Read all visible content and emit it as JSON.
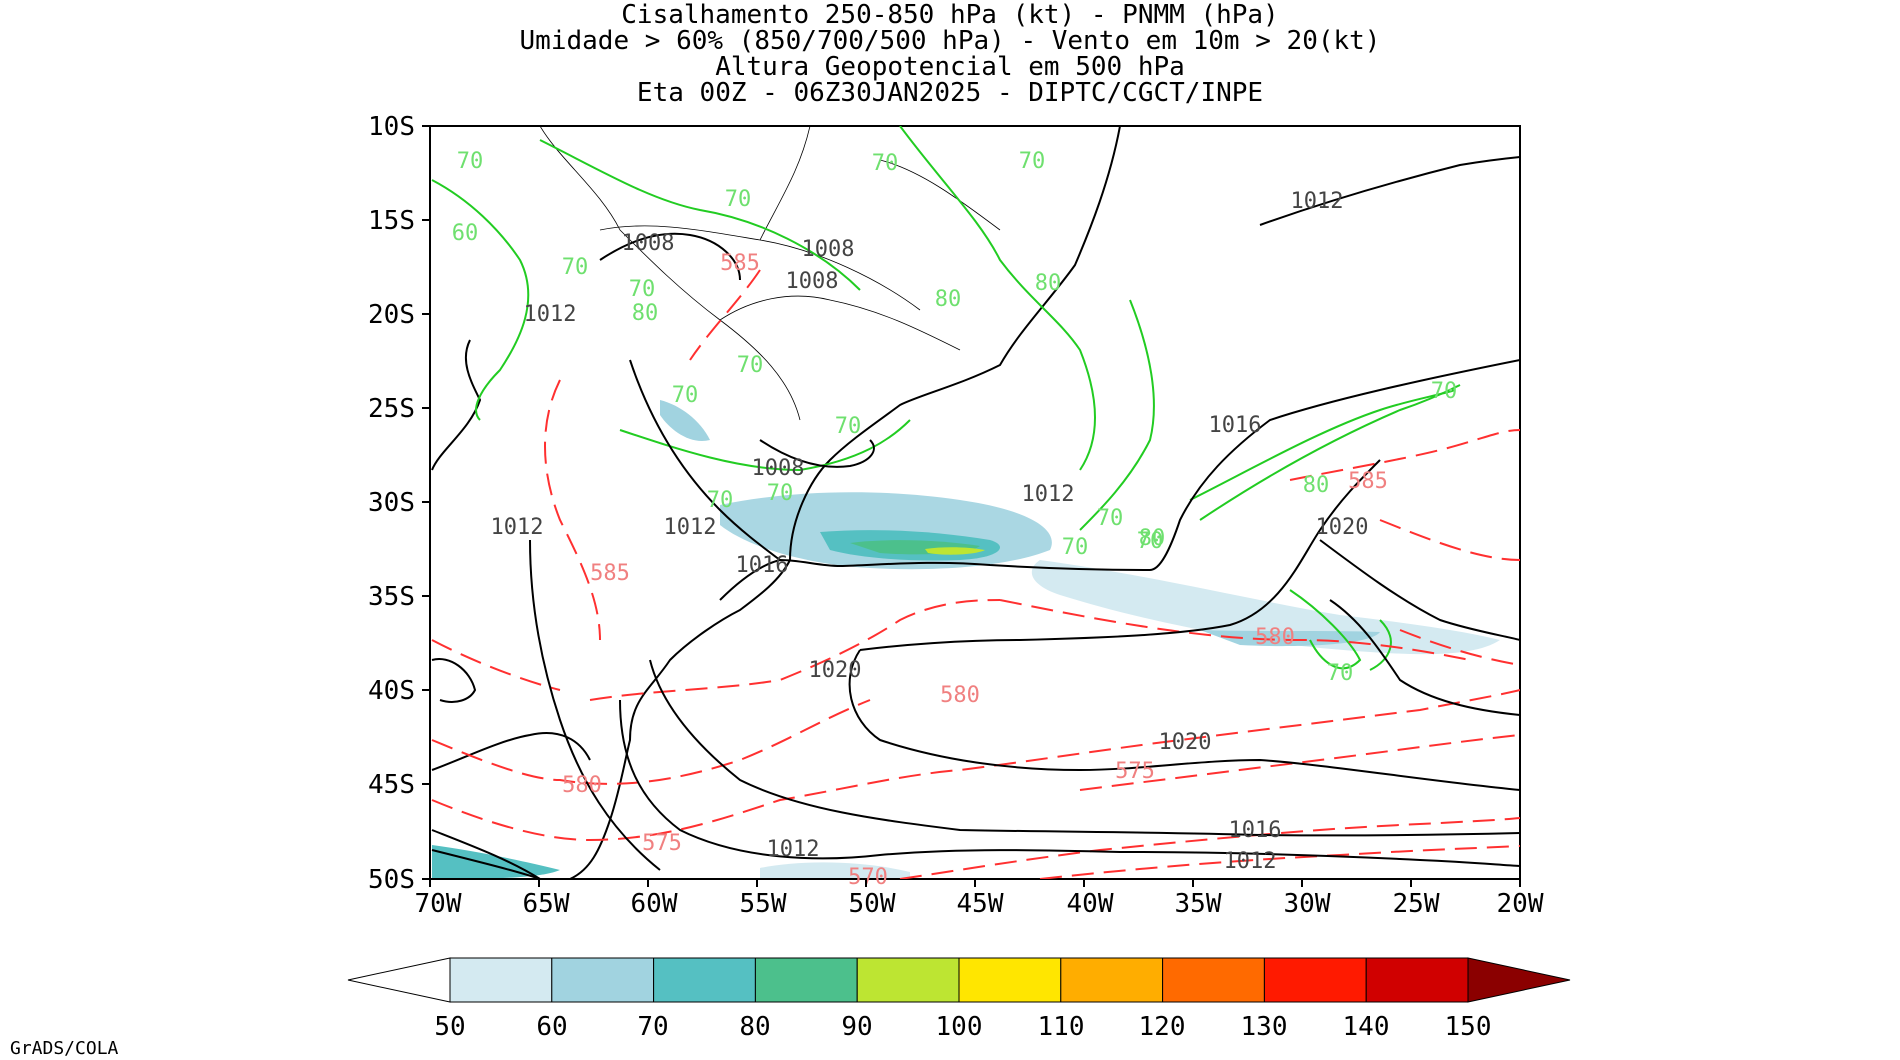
{
  "title_lines": [
    "Cisalhamento 250-850 hPa (kt) - PNMM (hPa)",
    "Umidade > 60% (850/700/500 hPa) - Vento em 10m > 20(kt)",
    "Altura Geopotencial em 500 hPa",
    "Eta 00Z - 06Z30JAN2025 - DIPTC/CGCT/INPE"
  ],
  "map": {
    "lat_labels": [
      "10S",
      "15S",
      "20S",
      "25S",
      "30S",
      "35S",
      "40S",
      "45S",
      "50S"
    ],
    "lon_labels": [
      "70W",
      "65W",
      "60W",
      "55W",
      "50W",
      "45W",
      "40W",
      "35W",
      "30W",
      "25W",
      "20W"
    ],
    "lat_range": [
      -50,
      -10
    ],
    "lon_range": [
      -70,
      -20
    ],
    "pressure_labels": [
      "1012",
      "1008",
      "1008",
      "1008",
      "1012",
      "1016",
      "1008",
      "1012",
      "1012",
      "1012",
      "1016",
      "1020",
      "1020",
      "1020",
      "1016",
      "1012",
      "1012"
    ],
    "geopotential_labels": [
      "585",
      "585",
      "585",
      "580",
      "580",
      "580",
      "575",
      "575",
      "570"
    ],
    "humidity_labels": [
      "70",
      "70",
      "70",
      "70",
      "70",
      "60",
      "70",
      "70",
      "80",
      "70",
      "80",
      "80",
      "70",
      "70",
      "70",
      "70",
      "70",
      "70",
      "80",
      "70",
      "80",
      "70"
    ],
    "colors": {
      "pressure": "#000000",
      "geopotential": "#ff3030",
      "geopotential_label": "#f08080",
      "humidity": "#22cc22",
      "humidity_label": "#6fe06f"
    }
  },
  "colorbar": {
    "labels": [
      "50",
      "60",
      "70",
      "80",
      "90",
      "100",
      "110",
      "120",
      "130",
      "140",
      "150"
    ],
    "colors": [
      "#d4eaf1",
      "#a1d3e0",
      "#55c0c2",
      "#4cc08c",
      "#bde532",
      "#ffe600",
      "#ffad00",
      "#ff6a00",
      "#ff1a00",
      "#d00000",
      "#8b0000"
    ],
    "low_extend_color": "#ffffff"
  },
  "credit": "GrADS/COLA"
}
